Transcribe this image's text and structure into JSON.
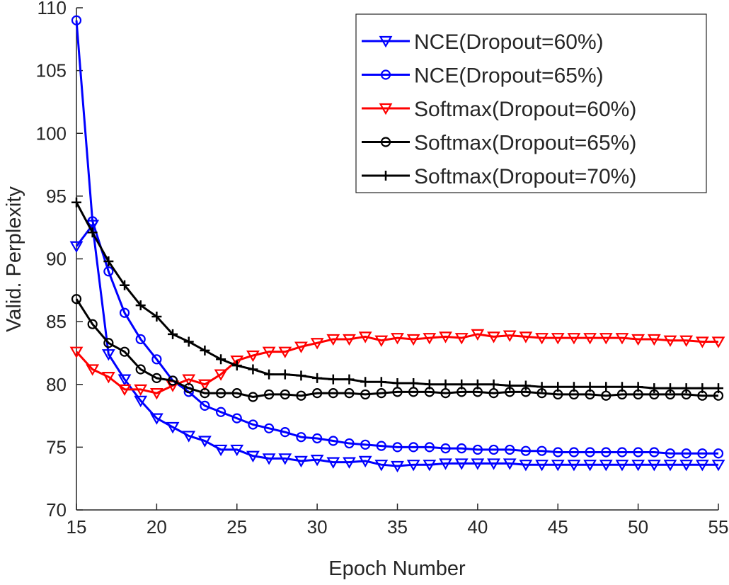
{
  "chart_data": {
    "type": "line",
    "title": "",
    "xlabel": "Epoch Number",
    "ylabel": "Valid. Perplexity",
    "xlim": [
      15,
      55
    ],
    "ylim": [
      70,
      110
    ],
    "xticks": [
      15,
      20,
      25,
      30,
      35,
      40,
      45,
      50,
      55
    ],
    "yticks": [
      70,
      75,
      80,
      85,
      90,
      95,
      100,
      105,
      110
    ],
    "grid": false,
    "legend_position": "top-right",
    "x": [
      15,
      16,
      17,
      18,
      19,
      20,
      21,
      22,
      23,
      24,
      25,
      26,
      27,
      28,
      29,
      30,
      31,
      32,
      33,
      34,
      35,
      36,
      37,
      38,
      39,
      40,
      41,
      42,
      43,
      44,
      45,
      46,
      47,
      48,
      49,
      50,
      51,
      52,
      53,
      54,
      55
    ],
    "series": [
      {
        "name": "NCE(Dropout=60%)",
        "color": "#0000ff",
        "marker": "triangle-down",
        "values": [
          91.0,
          92.7,
          82.4,
          80.4,
          78.7,
          77.3,
          76.6,
          75.9,
          75.5,
          74.8,
          74.8,
          74.3,
          74.1,
          74.1,
          73.9,
          74.0,
          73.8,
          73.8,
          73.9,
          73.6,
          73.5,
          73.6,
          73.6,
          73.7,
          73.7,
          73.7,
          73.7,
          73.7,
          73.6,
          73.6,
          73.6,
          73.6,
          73.6,
          73.6,
          73.6,
          73.6,
          73.6,
          73.6,
          73.6,
          73.6,
          73.6
        ]
      },
      {
        "name": "NCE(Dropout=65%)",
        "color": "#0000ff",
        "marker": "circle",
        "values": [
          109.0,
          93.0,
          89.0,
          85.7,
          83.6,
          82.0,
          80.3,
          79.4,
          78.3,
          77.8,
          77.3,
          76.8,
          76.5,
          76.2,
          75.8,
          75.7,
          75.5,
          75.3,
          75.2,
          75.1,
          75.0,
          75.0,
          75.0,
          74.9,
          74.9,
          74.8,
          74.8,
          74.8,
          74.7,
          74.7,
          74.6,
          74.6,
          74.6,
          74.6,
          74.6,
          74.6,
          74.6,
          74.5,
          74.5,
          74.5,
          74.5
        ]
      },
      {
        "name": "Softmax(Dropout=60%)",
        "color": "#ff0000",
        "marker": "triangle-down",
        "values": [
          82.6,
          81.2,
          80.6,
          79.6,
          79.6,
          79.3,
          79.9,
          80.4,
          80.0,
          80.8,
          81.9,
          82.3,
          82.6,
          82.6,
          83.0,
          83.3,
          83.6,
          83.6,
          83.8,
          83.5,
          83.7,
          83.6,
          83.7,
          83.8,
          83.7,
          84.0,
          83.8,
          83.9,
          83.8,
          83.7,
          83.7,
          83.7,
          83.7,
          83.7,
          83.7,
          83.6,
          83.6,
          83.5,
          83.5,
          83.4,
          83.4
        ]
      },
      {
        "name": "Softmax(Dropout=65%)",
        "color": "#000000",
        "marker": "circle",
        "values": [
          86.8,
          84.8,
          83.3,
          82.6,
          81.2,
          80.5,
          80.3,
          79.7,
          79.3,
          79.3,
          79.3,
          79.0,
          79.2,
          79.2,
          79.1,
          79.3,
          79.3,
          79.3,
          79.2,
          79.3,
          79.4,
          79.4,
          79.4,
          79.3,
          79.4,
          79.4,
          79.3,
          79.4,
          79.4,
          79.3,
          79.2,
          79.2,
          79.2,
          79.1,
          79.2,
          79.2,
          79.2,
          79.2,
          79.2,
          79.1,
          79.1
        ]
      },
      {
        "name": "Softmax(Dropout=70%)",
        "color": "#000000",
        "marker": "plus",
        "values": [
          94.5,
          92.1,
          89.8,
          87.9,
          86.3,
          85.4,
          84.0,
          83.4,
          82.7,
          82.0,
          81.5,
          81.2,
          80.8,
          80.8,
          80.7,
          80.5,
          80.4,
          80.4,
          80.2,
          80.2,
          80.1,
          80.1,
          80.0,
          80.0,
          80.0,
          80.0,
          80.0,
          79.9,
          79.9,
          79.8,
          79.8,
          79.8,
          79.8,
          79.8,
          79.8,
          79.8,
          79.7,
          79.7,
          79.7,
          79.7,
          79.7
        ]
      }
    ]
  }
}
